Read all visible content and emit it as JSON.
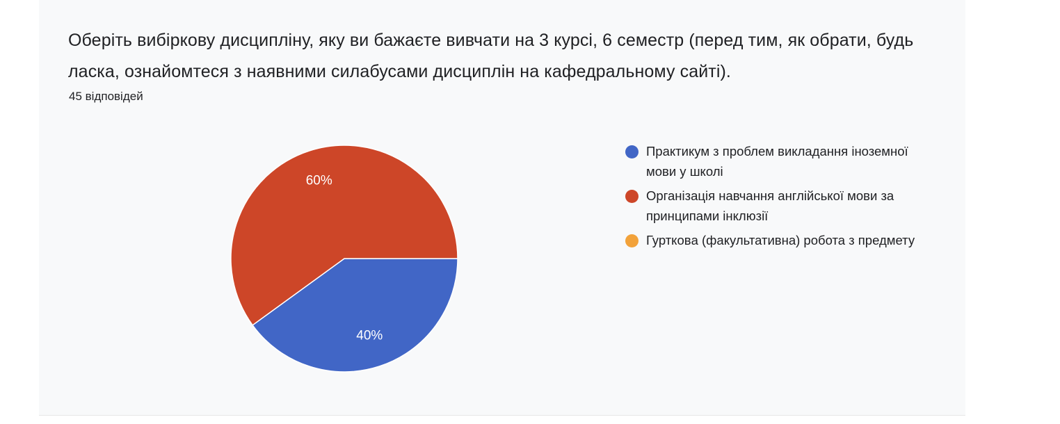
{
  "header": {
    "title": "Оберіть вибіркову дисципліну, яку ви бажаєте вивчати на 3 курсі, 6 семестр  (перед тим, як обрати, будь ласка, ознайомтеся з наявними силабусами  дисциплін на кафедральному сайті).",
    "responses": "45 відповідей"
  },
  "chart_data": {
    "type": "pie",
    "title": "Оберіть вибіркову дисципліну, яку ви бажаєте вивчати на 3 курсі, 6 семестр  (перед тим, як обрати, будь ласка, ознайомтеся з наявними силабусами  дисциплін на кафедральному сайті).",
    "legend_position": "right",
    "slices": [
      {
        "label": "Практикум з проблем викладання іноземної мови у школі",
        "value": 40,
        "display": "40%",
        "color": "#4166c6"
      },
      {
        "label": "Організація навчання англійської мови за принципами інклюзії",
        "value": 60,
        "display": "60%",
        "color": "#cd4628"
      },
      {
        "label": "Гуртковa (факультативна) робота з предмету",
        "value": 0,
        "display": "",
        "color": "#f2a23a"
      }
    ]
  }
}
